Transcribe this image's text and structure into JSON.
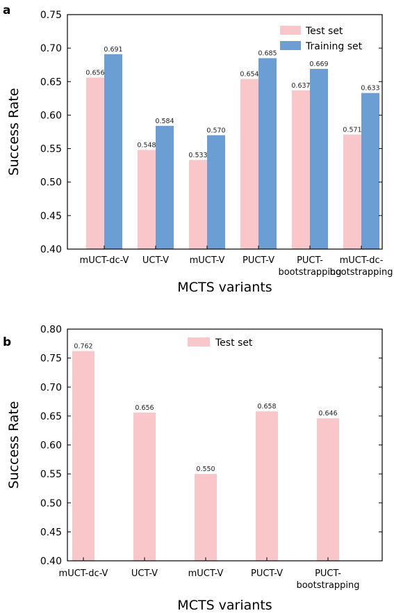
{
  "chart_data": [
    {
      "type": "bar",
      "panel": "a",
      "xlabel": "MCTS variants",
      "ylabel": "Success Rate",
      "ylim": [
        0.4,
        0.75
      ],
      "yticks": [
        "0.40",
        "0.45",
        "0.50",
        "0.55",
        "0.60",
        "0.65",
        "0.70",
        "0.75"
      ],
      "categories": [
        [
          "mUCT-dc-V"
        ],
        [
          "UCT-V"
        ],
        [
          "mUCT-V"
        ],
        [
          "PUCT-V"
        ],
        [
          "PUCT-",
          "bootstrapping"
        ],
        [
          "mUCT-dc-",
          "bootstrapping"
        ]
      ],
      "series": [
        {
          "name": "Test set",
          "color": "#f9c6c9",
          "values": [
            0.656,
            0.548,
            0.533,
            0.654,
            0.637,
            0.571
          ],
          "labels": [
            "0.656",
            "0.548",
            "0.533",
            "0.654",
            "0.637",
            "0.571"
          ]
        },
        {
          "name": "Training set",
          "color": "#6b9fd4",
          "values": [
            0.691,
            0.584,
            0.57,
            0.685,
            0.669,
            0.633
          ],
          "labels": [
            "0.691",
            "0.584",
            "0.570",
            "0.685",
            "0.669",
            "0.633"
          ]
        }
      ],
      "grid": false,
      "legend": "top-right"
    },
    {
      "type": "bar",
      "panel": "b",
      "xlabel": "MCTS variants",
      "ylabel": "Success Rate",
      "ylim": [
        0.4,
        0.8
      ],
      "yticks": [
        "0.40",
        "0.45",
        "0.50",
        "0.55",
        "0.60",
        "0.65",
        "0.70",
        "0.75",
        "0.80"
      ],
      "categories": [
        [
          "mUCT-dc-V"
        ],
        [
          "UCT-V"
        ],
        [
          "mUCT-V"
        ],
        [
          "PUCT-V"
        ],
        [
          "PUCT-",
          "bootstrapping"
        ]
      ],
      "series": [
        {
          "name": "Test set",
          "color": "#f9c6c9",
          "values": [
            0.762,
            0.656,
            0.55,
            0.658,
            0.646
          ],
          "labels": [
            "0.762",
            "0.656",
            "0.550",
            "0.658",
            "0.646"
          ]
        }
      ],
      "grid": false,
      "legend": "top-center"
    }
  ]
}
